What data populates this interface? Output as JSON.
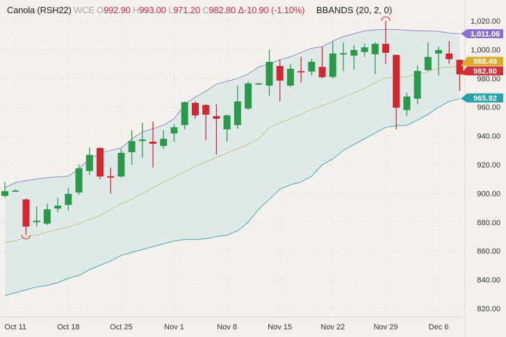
{
  "header": {
    "symbol": "Canola (RSH22)",
    "exchange": "WCE",
    "o_label": "O",
    "o": "992.90",
    "h_label": "H",
    "h": "993.00",
    "l_label": "L",
    "l": "971.20",
    "c_label": "C",
    "c": "982.80",
    "change": "Δ-10.90 (-1.10%)",
    "indicator": "BBANDS (20, 2, 0)"
  },
  "colors": {
    "up": "#2a9a4a",
    "down": "#d3272f",
    "band_fill": "#d9e8e7",
    "upper": "#8f88cc",
    "middle": "#c8c27c",
    "lower": "#45a6b3",
    "badge_upper": "#8a70cf",
    "badge_middle": "#d8ab2a",
    "badge_last": "#d0303a",
    "badge_lower": "#25a4a7"
  },
  "chart_data": {
    "type": "candlestick",
    "title": "Canola (RSH22)",
    "ylim": [
      812,
      1026
    ],
    "y_ticks": [
      "820.00",
      "840.00",
      "860.00",
      "880.00",
      "900.00",
      "920.00",
      "940.00",
      "960.00",
      "980.00",
      "1,000.00",
      "1,020.00"
    ],
    "y_tick_values": [
      820,
      840,
      860,
      880,
      900,
      920,
      940,
      960,
      980,
      1000,
      1020
    ],
    "x_labels": [
      {
        "label": "Oct 11",
        "index": 1
      },
      {
        "label": "Oct 18",
        "index": 6
      },
      {
        "label": "Oct 25",
        "index": 11
      },
      {
        "label": "Nov 1",
        "index": 16
      },
      {
        "label": "Nov 8",
        "index": 21
      },
      {
        "label": "Nov 15",
        "index": 26
      },
      {
        "label": "Nov 22",
        "index": 31
      },
      {
        "label": "Nov 29",
        "index": 36
      },
      {
        "label": "Dec 6",
        "index": 41
      }
    ],
    "ohlc": [
      [
        898.3,
        907.9,
        897,
        901.6
      ],
      [
        902,
        903,
        901.5,
        902
      ],
      [
        895.8,
        896.5,
        871.2,
        877
      ],
      [
        880,
        891,
        877,
        881
      ],
      [
        879,
        893,
        878,
        889
      ],
      [
        889.5,
        897,
        887,
        891.5
      ],
      [
        892,
        904,
        888,
        899.7
      ],
      [
        900.7,
        920,
        899,
        917.5
      ],
      [
        915.6,
        932,
        913,
        926.8
      ],
      [
        931.6,
        932,
        910,
        911.8
      ],
      [
        912,
        918,
        900,
        911
      ],
      [
        911.8,
        931,
        911,
        928.2
      ],
      [
        928.7,
        944,
        920,
        936.4
      ],
      [
        936.5,
        949,
        925,
        937.5
      ],
      [
        936,
        950,
        918,
        934.5
      ],
      [
        933,
        944,
        931,
        938
      ],
      [
        941.7,
        948,
        936,
        946
      ],
      [
        947.5,
        964,
        944.6,
        963.5
      ],
      [
        963,
        964,
        952,
        954.3
      ],
      [
        961.5,
        962,
        937,
        954.8
      ],
      [
        953.8,
        962,
        927,
        951.9
      ],
      [
        944.6,
        955,
        936,
        954.3
      ],
      [
        947.5,
        975,
        945,
        964
      ],
      [
        959,
        978,
        958,
        976.5
      ],
      [
        976.5,
        977,
        976,
        976.5
      ],
      [
        975,
        1000,
        968,
        991.5
      ],
      [
        988.6,
        993,
        964,
        978.5
      ],
      [
        975,
        990,
        974,
        986.7
      ],
      [
        985,
        995,
        977,
        984.5
      ],
      [
        984.7,
        993.5,
        982,
        991.5
      ],
      [
        988,
        1002,
        980,
        980.9
      ],
      [
        981,
        1006,
        980,
        997.3
      ],
      [
        997,
        1005,
        985,
        997.5
      ],
      [
        995.8,
        1003,
        986,
        999.7
      ],
      [
        998.3,
        1004,
        995,
        1001.6
      ],
      [
        996.8,
        1005,
        983,
        1004
      ],
      [
        1004,
        1020,
        990,
        997.8
      ],
      [
        996.3,
        996.5,
        944.5,
        959.6
      ],
      [
        958,
        970,
        954,
        967.4
      ],
      [
        965.9,
        989,
        962,
        985.2
      ],
      [
        985.7,
        1005,
        985,
        994.9
      ],
      [
        997.3,
        1002,
        982,
        999.7
      ],
      [
        997.3,
        1006,
        990,
        993.4
      ],
      [
        992.9,
        993,
        971.2,
        982.8
      ]
    ],
    "bbands": {
      "upper": [
        904,
        907.5,
        909,
        910,
        911,
        911.5,
        912,
        917,
        924,
        928,
        930,
        931.6,
        938,
        942.7,
        945,
        947.5,
        952,
        962,
        967,
        971,
        976,
        978,
        980,
        983,
        988,
        990,
        993,
        995,
        998,
        1001,
        1002,
        1006,
        1009,
        1011,
        1013,
        1013.7,
        1014,
        1014,
        1013.5,
        1013,
        1013,
        1012.7,
        1011.5,
        1011.06
      ],
      "middle": [
        866,
        867,
        870,
        871,
        873,
        875,
        876.5,
        879,
        882,
        884.7,
        889,
        893,
        896,
        900,
        904,
        908,
        911.3,
        915,
        919,
        922,
        925,
        928,
        931,
        934,
        938,
        946,
        949,
        952,
        955,
        958.6,
        961,
        964,
        967,
        970,
        973,
        977,
        980.4,
        981,
        981,
        983,
        984.7,
        987,
        988,
        988.49
      ],
      "lower": [
        829,
        831,
        833,
        835,
        836,
        838,
        841,
        843,
        847,
        850,
        853,
        857,
        859,
        861,
        863,
        865,
        867,
        868,
        868,
        868.5,
        870,
        871,
        874,
        880,
        889,
        896,
        903,
        906,
        908,
        912,
        920,
        924,
        930,
        934,
        938,
        942,
        946,
        947,
        947.5,
        951,
        955,
        960,
        964,
        965.92
      ]
    },
    "badges": {
      "upper": "1,011.06",
      "middle": "988.49",
      "last": "982.80",
      "lower": "965.92"
    }
  }
}
